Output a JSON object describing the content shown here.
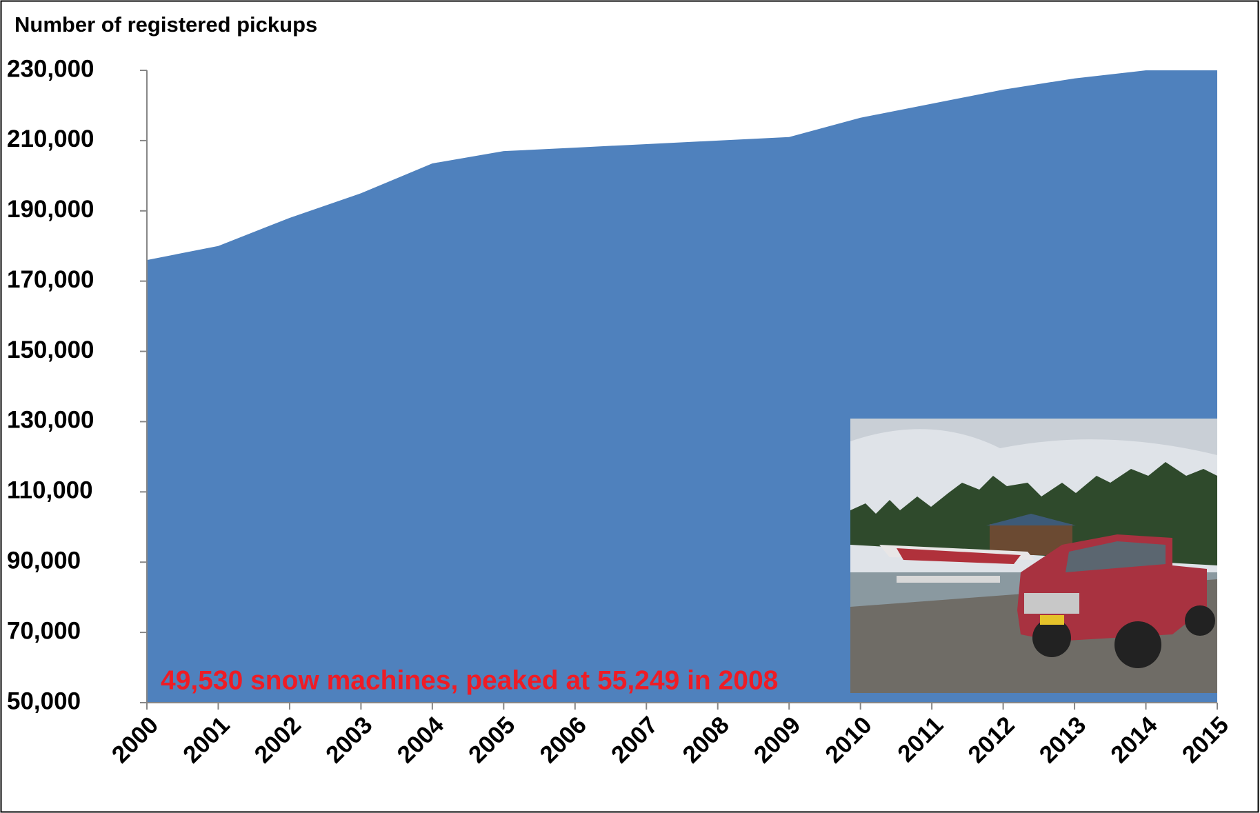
{
  "chart_data": {
    "type": "area",
    "y_label": "Number of registered pickups",
    "annotation": "49,530 snow machines, peaked at 55,249 in 2008",
    "annotation_color": "#ee1c25",
    "categories": [
      "2000",
      "2001",
      "2002",
      "2003",
      "2004",
      "2005",
      "2006",
      "2007",
      "2008",
      "2009",
      "2010",
      "2011",
      "2012",
      "2013",
      "2014",
      "2015"
    ],
    "values": [
      176000,
      180000,
      188000,
      195000,
      203500,
      207000,
      208000,
      209000,
      210000,
      211000,
      216500,
      220500,
      224500,
      227700,
      230000,
      230000
    ],
    "color": "#4f81bd",
    "ylim": [
      50000,
      230000
    ],
    "yticks": [
      {
        "value": 50000,
        "label": "50,000"
      },
      {
        "value": 70000,
        "label": "70,000"
      },
      {
        "value": 90000,
        "label": "90,000"
      },
      {
        "value": 110000,
        "label": "110,000"
      },
      {
        "value": 130000,
        "label": "130,000"
      },
      {
        "value": 150000,
        "label": "150,000"
      },
      {
        "value": 170000,
        "label": "170,000"
      },
      {
        "value": 190000,
        "label": "190,000"
      },
      {
        "value": 210000,
        "label": "210,000"
      },
      {
        "value": 230000,
        "label": "230,000"
      }
    ],
    "grid": false
  }
}
